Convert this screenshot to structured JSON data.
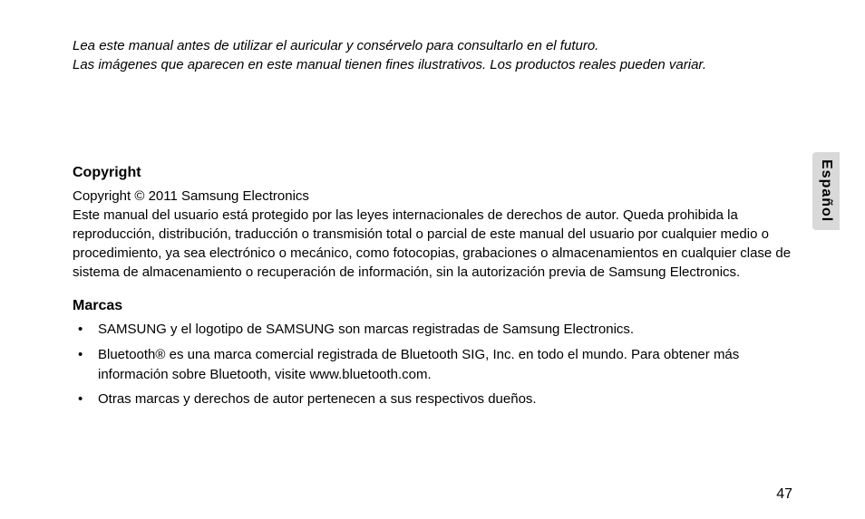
{
  "intro": {
    "line1": "Lea este manual antes de utilizar el auricular y consérvelo para consultarlo en el futuro.",
    "line2": "Las imágenes que aparecen en este manual tienen fines ilustrativos. Los productos reales pueden variar."
  },
  "sections": {
    "copyright": {
      "heading": "Copyright",
      "line1": "Copyright © 2011 Samsung Electronics",
      "body": "Este manual del usuario está protegido por las leyes internacionales de derechos de autor. Queda prohibida la reproducción, distribución, traducción o transmisión total o parcial de este manual del usuario por cualquier medio o procedimiento, ya sea electrónico o mecánico, como fotocopias, grabaciones o almacenamientos en cualquier clase de sistema de almacenamiento o recuperación de información, sin la autorización previa de Samsung Electronics."
    },
    "trademarks": {
      "heading": "Marcas",
      "items": [
        "SAMSUNG y el logotipo de SAMSUNG son marcas registradas de Samsung Electronics.",
        "Bluetooth® es una marca comercial registrada de Bluetooth SIG, Inc. en todo el mundo. Para obtener más información sobre Bluetooth, visite www.bluetooth.com.",
        "Otras marcas y derechos de autor pertenecen a sus respectivos dueños."
      ]
    }
  },
  "side_tab": "Español",
  "page_number": "47",
  "colors": {
    "background": "#ffffff",
    "text": "#000000",
    "tab_bg": "#d9d9d9"
  },
  "typography": {
    "body_fontsize": 15,
    "heading_fontsize": 16,
    "line_height": 1.4
  }
}
